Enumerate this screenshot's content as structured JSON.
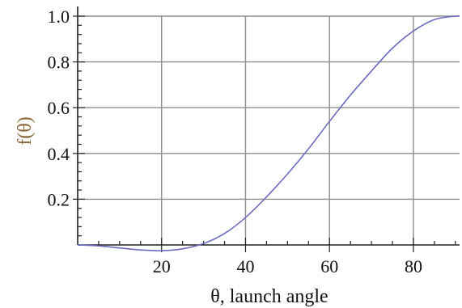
{
  "chart_data": {
    "type": "line",
    "title": "",
    "xlabel": "θ, launch angle",
    "ylabel": "f(θ)",
    "xlim": [
      0,
      91
    ],
    "ylim": [
      0,
      1.0
    ],
    "x_ticks": [
      20,
      40,
      60,
      80
    ],
    "x_tick_labels": [
      "20",
      "40",
      "60",
      "80"
    ],
    "y_ticks": [
      0.2,
      0.4,
      0.6,
      0.8,
      1.0
    ],
    "y_tick_labels": [
      "0.2",
      "0.4",
      "0.6",
      "0.8",
      "1.0"
    ],
    "grid": true,
    "series": [
      {
        "color": "#6b6bbf",
        "x": [
          0,
          5,
          10,
          15,
          20,
          25,
          30,
          35,
          40,
          45,
          50,
          55,
          60,
          65,
          70,
          75,
          80,
          85,
          90,
          91
        ],
        "y": [
          0.0,
          -0.004,
          -0.013,
          -0.022,
          -0.025,
          -0.017,
          0.006,
          0.05,
          0.12,
          0.21,
          0.31,
          0.42,
          0.54,
          0.655,
          0.76,
          0.86,
          0.935,
          0.985,
          1.0,
          1.0
        ]
      }
    ]
  }
}
